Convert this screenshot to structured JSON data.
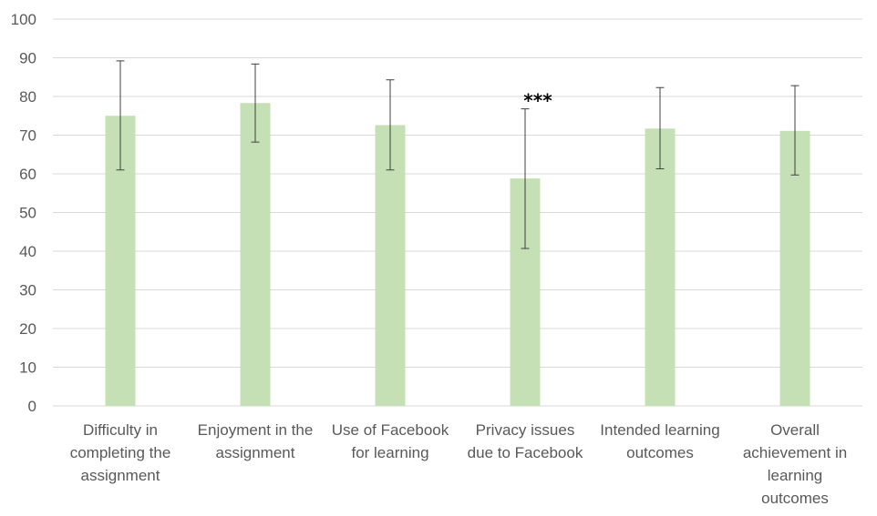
{
  "chart_data": {
    "type": "bar",
    "title": "",
    "xlabel": "",
    "ylabel": "",
    "ylim": [
      0,
      100
    ],
    "yticks": [
      0,
      10,
      20,
      30,
      40,
      50,
      60,
      70,
      80,
      90,
      100
    ],
    "grid": true,
    "bar_color": "#c5e0b4",
    "error_bar_color": "#404040",
    "gridline_color": "#d9d9d9",
    "categories": [
      [
        "Difficulty in",
        "completing the",
        "assignment"
      ],
      [
        "Enjoyment in the",
        "assignment"
      ],
      [
        "Use of Facebook",
        "for learning"
      ],
      [
        "Privacy issues",
        "due to Facebook"
      ],
      [
        "Intended learning",
        "outcomes"
      ],
      [
        "Overall",
        "achievement in",
        "learning",
        "outcomes"
      ]
    ],
    "values": [
      75,
      78.3,
      72.6,
      58.8,
      71.7,
      71.1
    ],
    "error_low": [
      61,
      68.2,
      61,
      40.7,
      61.3,
      59.7
    ],
    "error_high": [
      89.2,
      88.4,
      84.3,
      76.8,
      82.3,
      82.8
    ],
    "annotations": [
      {
        "category_index": 3,
        "text": "***"
      }
    ]
  }
}
